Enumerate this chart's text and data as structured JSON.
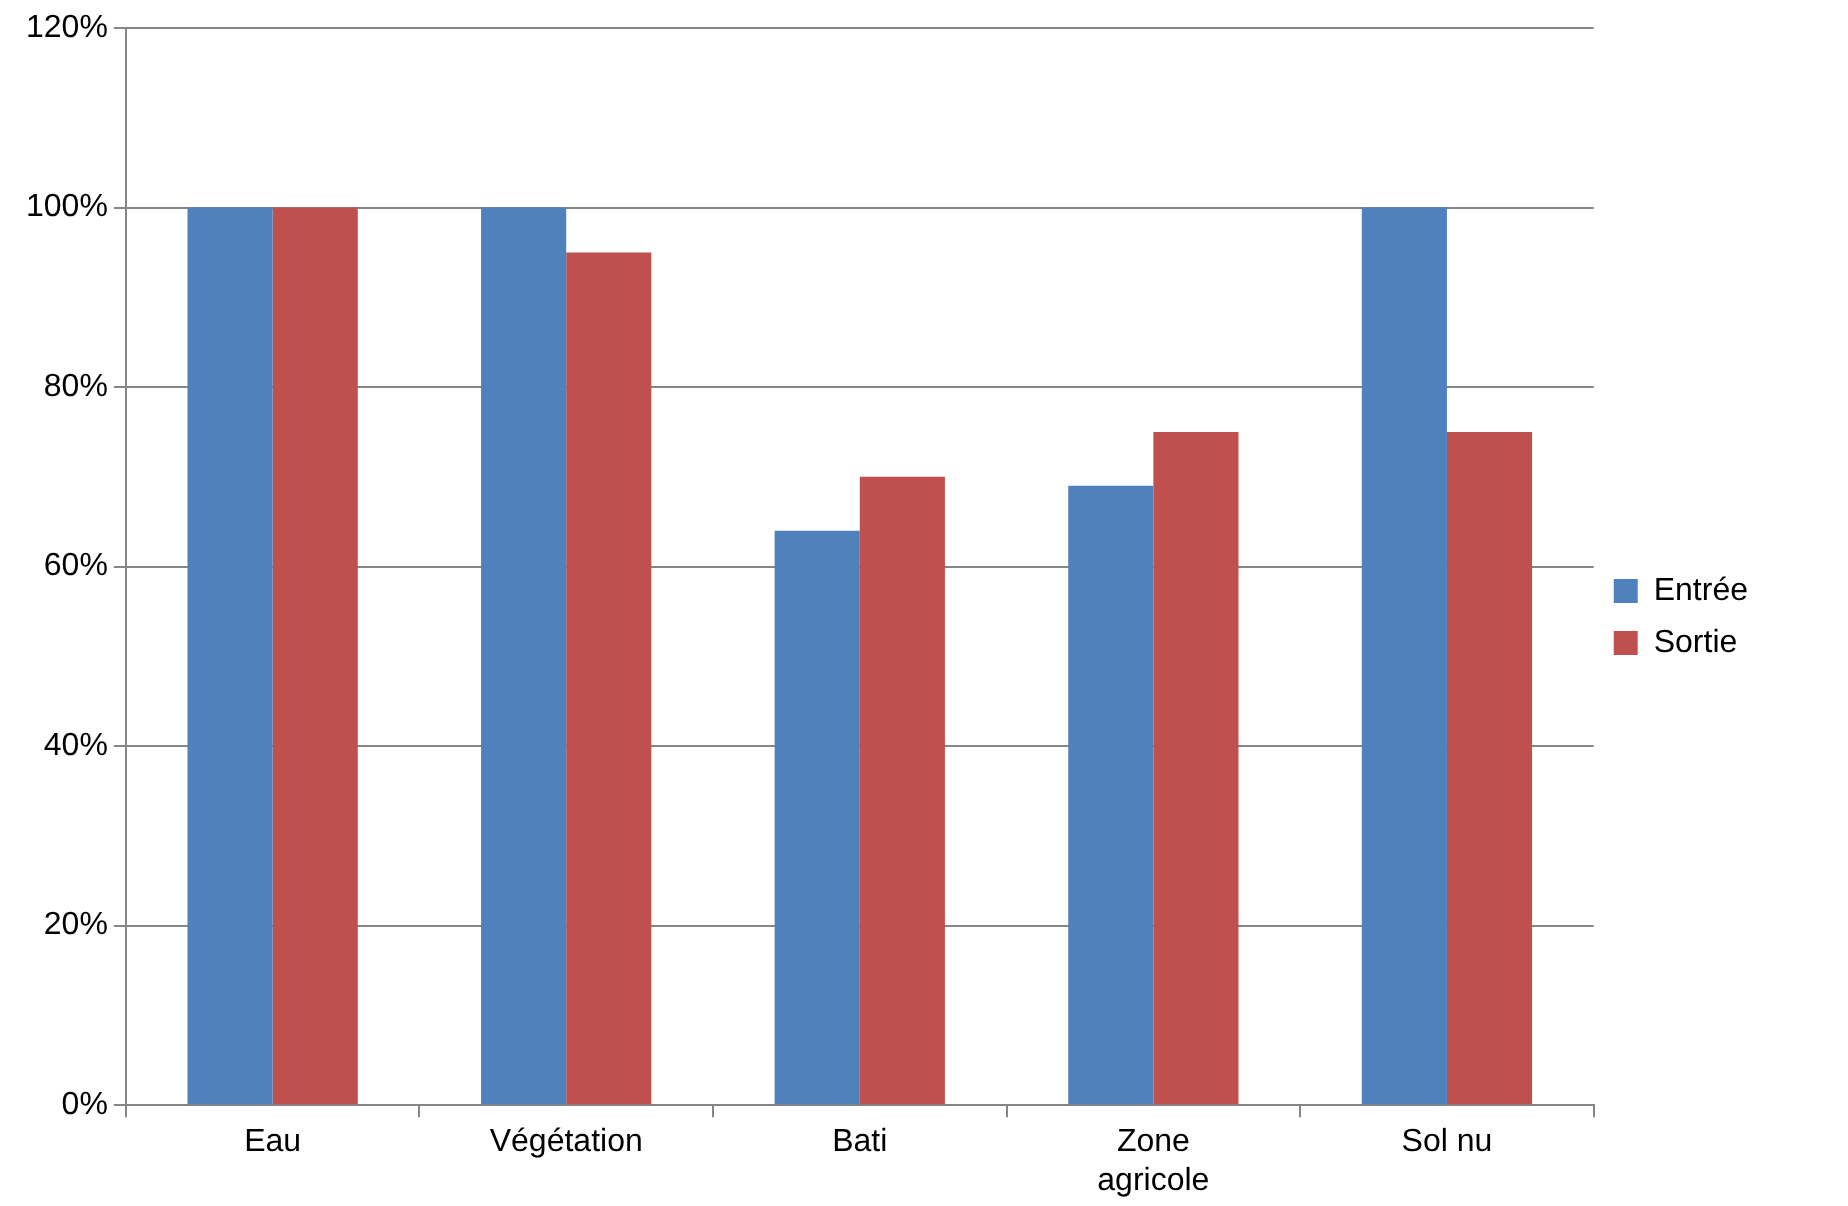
{
  "chart_data": {
    "type": "bar",
    "categories": [
      "Eau",
      "Végétation",
      "Bati",
      "Zone agricole",
      "Sol nu"
    ],
    "series": [
      {
        "name": "Entrée",
        "color": "#4f81bd",
        "values": [
          100,
          100,
          64,
          69,
          100
        ]
      },
      {
        "name": "Sortie",
        "color": "#c0504d",
        "values": [
          100,
          95,
          70,
          75,
          75
        ]
      }
    ],
    "ylim": [
      0,
      120
    ],
    "yticks": [
      {
        "value": 0,
        "label": "0%"
      },
      {
        "value": 20,
        "label": "20%"
      },
      {
        "value": 40,
        "label": "40%"
      },
      {
        "value": 60,
        "label": "60%"
      },
      {
        "value": 80,
        "label": "80%"
      },
      {
        "value": 100,
        "label": "100%"
      },
      {
        "value": 120,
        "label": "120%"
      }
    ],
    "grid": "y",
    "legend": "right"
  }
}
